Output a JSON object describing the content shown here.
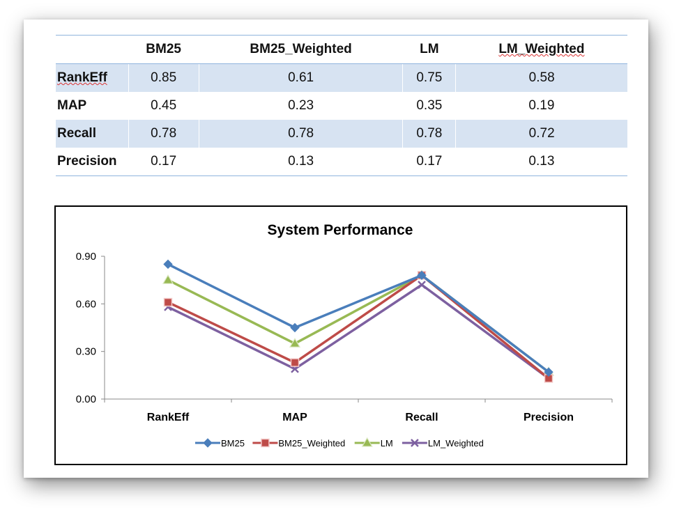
{
  "table": {
    "columns": [
      "BM25",
      "BM25_Weighted",
      "LM",
      "LM_Weighted"
    ],
    "rows": [
      {
        "label": "RankEff",
        "values": [
          "0.85",
          "0.61",
          "0.75",
          "0.58"
        ]
      },
      {
        "label": "MAP",
        "values": [
          "0.45",
          "0.23",
          "0.35",
          "0.19"
        ]
      },
      {
        "label": "Recall",
        "values": [
          "0.78",
          "0.78",
          "0.78",
          "0.72"
        ]
      },
      {
        "label": "Precision",
        "values": [
          "0.17",
          "0.13",
          "0.17",
          "0.13"
        ]
      }
    ]
  },
  "chart_data": {
    "type": "line",
    "title": "System Performance",
    "xlabel": "",
    "ylabel": "",
    "categories": [
      "RankEff",
      "MAP",
      "Recall",
      "Precision"
    ],
    "ylim": [
      0,
      0.9
    ],
    "yticks": [
      "0.00",
      "0.30",
      "0.60",
      "0.90"
    ],
    "grid": false,
    "legend_position": "bottom",
    "series": [
      {
        "name": "BM25",
        "values": [
          0.85,
          0.45,
          0.78,
          0.17
        ],
        "color": "#4a7ebb",
        "marker": "diamond"
      },
      {
        "name": "BM25_Weighted",
        "values": [
          0.61,
          0.23,
          0.78,
          0.13
        ],
        "color": "#be4b48",
        "marker": "square"
      },
      {
        "name": "LM",
        "values": [
          0.75,
          0.35,
          0.78,
          0.17
        ],
        "color": "#98b954",
        "marker": "triangle"
      },
      {
        "name": "LM_Weighted",
        "values": [
          0.58,
          0.19,
          0.72,
          0.13
        ],
        "color": "#7d60a0",
        "marker": "x"
      }
    ]
  }
}
